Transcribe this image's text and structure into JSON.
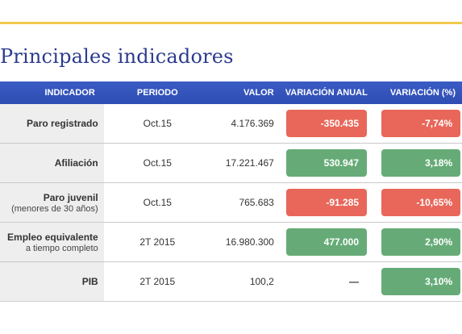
{
  "title": "Principales indicadores",
  "colors": {
    "accent_line": "#f2c94c",
    "header_bg": "#3a5cc4",
    "negative": "#e8675a",
    "positive": "#66ab77"
  },
  "headers": {
    "indicador": "INDICADOR",
    "periodo": "PERIODO",
    "valor": "VALOR",
    "variacion_anual": "VARIACIÓN ANUAL",
    "variacion_pct": "VARIACIÓN (%)"
  },
  "rows": [
    {
      "indicador": "Paro registrado",
      "sub": "",
      "periodo": "Oct.15",
      "valor": "4.176.369",
      "anual": "-350.435",
      "anual_status": "negative",
      "pct": "-7,74%",
      "pct_status": "negative"
    },
    {
      "indicador": "Afiliación",
      "sub": "",
      "periodo": "Oct.15",
      "valor": "17.221.467",
      "anual": "530.947",
      "anual_status": "positive",
      "pct": "3,18%",
      "pct_status": "positive"
    },
    {
      "indicador": "Paro juvenil",
      "sub": "(menores de 30 años)",
      "periodo": "Oct.15",
      "valor": "765.683",
      "anual": "-91.285",
      "anual_status": "negative",
      "pct": "-10,65%",
      "pct_status": "negative"
    },
    {
      "indicador": "Empleo equivalente",
      "sub": "a tiempo completo",
      "periodo": "2T 2015",
      "valor": "16.980.300",
      "anual": "477.000",
      "anual_status": "positive",
      "pct": "2,90%",
      "pct_status": "positive"
    },
    {
      "indicador": "PIB",
      "sub": "",
      "periodo": "2T 2015",
      "valor": "100,2",
      "anual": "—",
      "anual_status": "none",
      "pct": "3,10%",
      "pct_status": "positive"
    }
  ]
}
